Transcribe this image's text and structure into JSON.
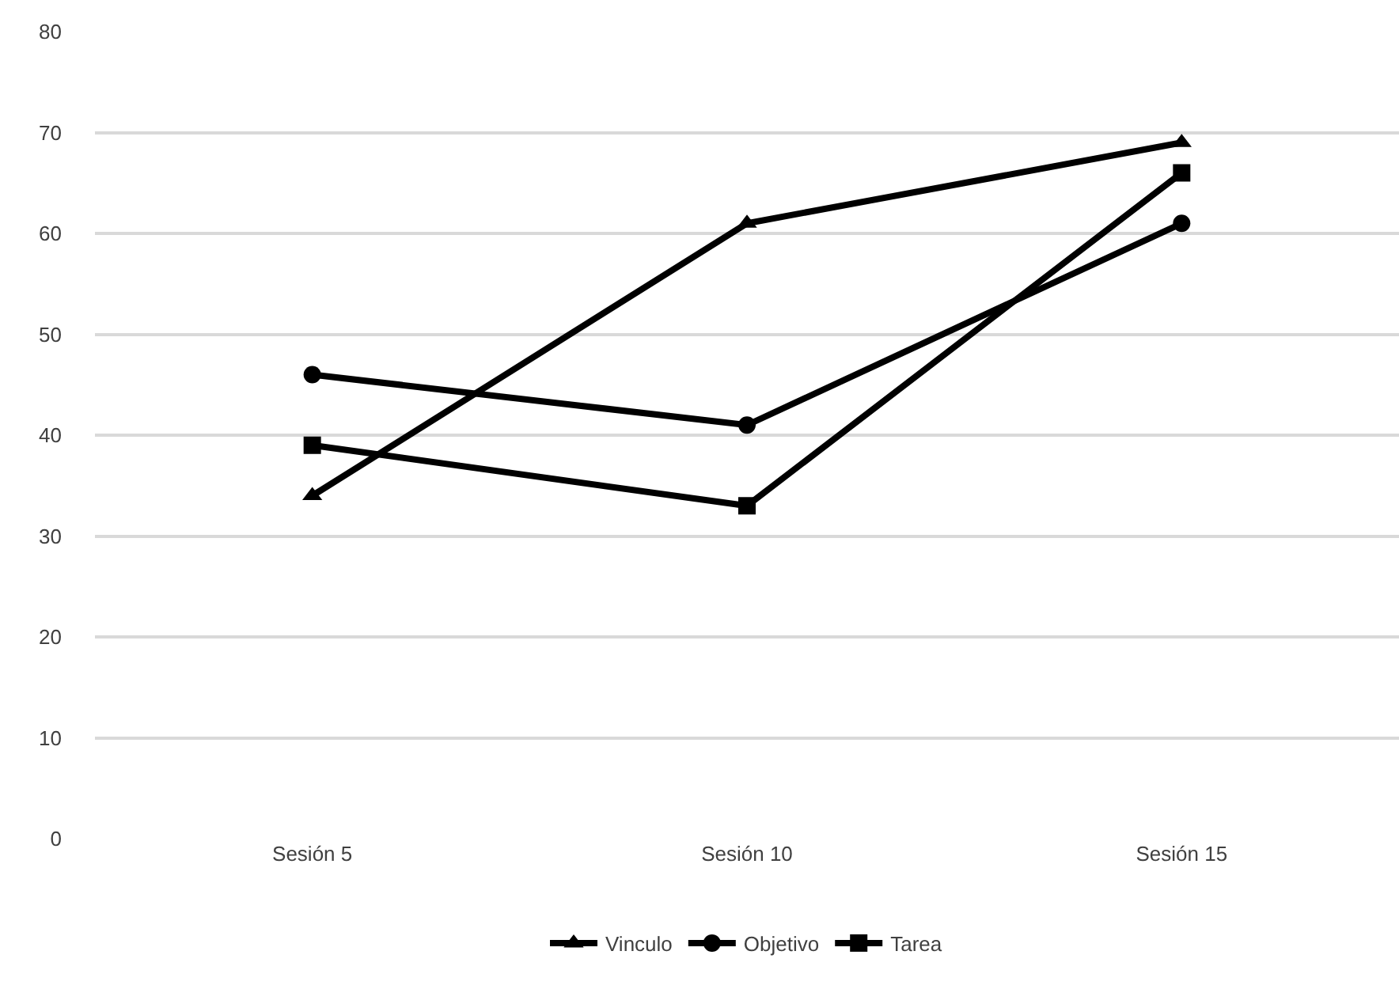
{
  "chart_data": {
    "type": "line",
    "categories": [
      "Sesión 5",
      "Sesión 10",
      "Sesión 15"
    ],
    "series": [
      {
        "name": "Vinculo",
        "color": "#000000",
        "marker": "triangle",
        "values": [
          34,
          61,
          69
        ]
      },
      {
        "name": "Objetivo",
        "color": "#000000",
        "marker": "circle",
        "values": [
          46,
          41,
          61
        ]
      },
      {
        "name": "Tarea",
        "color": "#000000",
        "marker": "square",
        "values": [
          39,
          33,
          66
        ]
      }
    ],
    "ylim": [
      0,
      80
    ],
    "yticks": [
      0,
      10,
      20,
      30,
      40,
      50,
      60,
      70,
      80
    ],
    "grid": "y",
    "legend": "bottom",
    "line_style": "solid"
  }
}
